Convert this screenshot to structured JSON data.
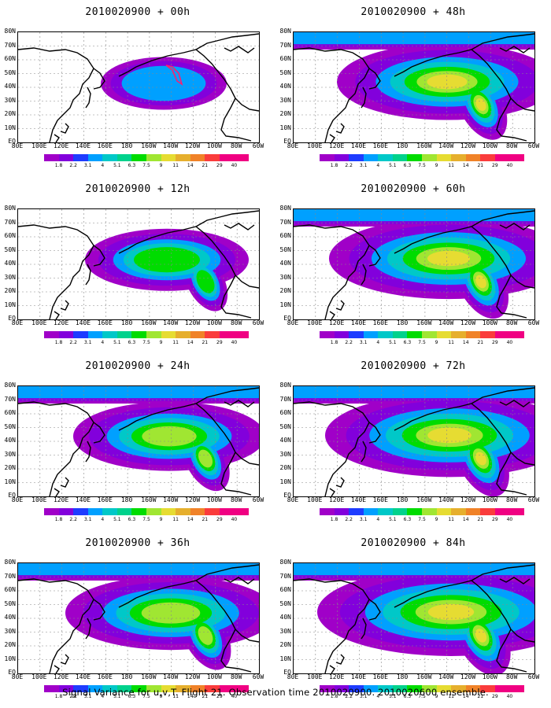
{
  "panels": [
    {
      "title": "2010020900 + 00h",
      "spread": 0.25,
      "peak": 0.7
    },
    {
      "title": "2010020900 + 48h",
      "spread": 0.75,
      "peak": 0.55
    },
    {
      "title": "2010020900 + 12h",
      "spread": 0.45,
      "peak": 0.55
    },
    {
      "title": "2010020900 + 60h",
      "spread": 0.85,
      "peak": 0.6
    },
    {
      "title": "2010020900 + 24h",
      "spread": 0.6,
      "peak": 0.55
    },
    {
      "title": "2010020900 + 72h",
      "spread": 0.9,
      "peak": 0.65
    },
    {
      "title": "2010020900 + 36h",
      "spread": 0.7,
      "peak": 0.6
    },
    {
      "title": "2010020900 + 84h",
      "spread": 1.0,
      "peak": 0.7
    }
  ],
  "lat_labels": [
    "80N",
    "70N",
    "60N",
    "50N",
    "40N",
    "30N",
    "20N",
    "10N",
    "EQ"
  ],
  "lon_labels": [
    "80E",
    "100E",
    "120E",
    "140E",
    "160E",
    "180",
    "160W",
    "140W",
    "120W",
    "100W",
    "80W",
    "60W"
  ],
  "colorbar": {
    "labels": [
      "1.8",
      "2.2",
      "3.1",
      "4",
      "5.1",
      "6.3",
      "7.5",
      "9",
      "11",
      "14",
      "21",
      "29",
      "40"
    ],
    "colors": [
      "#a000c8",
      "#8200dc",
      "#1e3cff",
      "#00a0ff",
      "#00c8c8",
      "#00d28c",
      "#00dc00",
      "#a0e632",
      "#e6dc32",
      "#e6af2d",
      "#f08228",
      "#fa3c3c",
      "#f00082"
    ]
  },
  "footer": "Signal Variance for u,v,T. Flight 21. Observation time 2010020900. 2010020600 ensemble."
}
